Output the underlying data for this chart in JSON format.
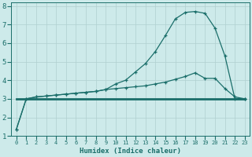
{
  "xlabel": "Humidex (Indice chaleur)",
  "background_color": "#cdeaea",
  "grid_color": "#b0d0d0",
  "line_color": "#1a6e6a",
  "xlim": [
    -0.5,
    23.5
  ],
  "ylim": [
    1,
    8.2
  ],
  "x_ticks": [
    0,
    1,
    2,
    3,
    4,
    5,
    6,
    7,
    8,
    9,
    10,
    11,
    12,
    13,
    14,
    15,
    16,
    17,
    18,
    19,
    20,
    21,
    22,
    23
  ],
  "yticks": [
    1,
    2,
    3,
    4,
    5,
    6,
    7,
    8
  ],
  "line_flat_x": [
    0,
    1,
    2,
    3,
    4,
    5,
    6,
    7,
    8,
    9,
    10,
    11,
    12,
    13,
    14,
    15,
    16,
    17,
    18,
    19,
    20,
    21,
    22,
    23
  ],
  "line_flat_y": [
    3.0,
    3.0,
    3.0,
    3.0,
    3.0,
    3.0,
    3.0,
    3.0,
    3.0,
    3.0,
    3.0,
    3.0,
    3.0,
    3.0,
    3.0,
    3.0,
    3.0,
    3.0,
    3.0,
    3.0,
    3.0,
    3.0,
    3.0,
    3.0
  ],
  "line_peak_x": [
    0,
    1,
    2,
    3,
    4,
    5,
    6,
    7,
    8,
    9,
    10,
    11,
    12,
    13,
    14,
    15,
    16,
    17,
    18,
    19,
    20,
    21,
    22,
    23
  ],
  "line_peak_y": [
    1.35,
    3.0,
    3.1,
    3.15,
    3.2,
    3.25,
    3.3,
    3.35,
    3.4,
    3.5,
    3.8,
    4.0,
    4.45,
    4.9,
    5.55,
    6.4,
    7.3,
    7.65,
    7.7,
    7.6,
    6.8,
    5.3,
    3.0,
    3.0
  ],
  "line_mid_x": [
    0,
    1,
    2,
    3,
    4,
    5,
    6,
    7,
    8,
    9,
    10,
    11,
    12,
    13,
    14,
    15,
    16,
    17,
    18,
    19,
    20,
    21,
    22,
    23
  ],
  "line_mid_y": [
    1.35,
    3.0,
    3.1,
    3.15,
    3.2,
    3.25,
    3.3,
    3.35,
    3.4,
    3.5,
    3.55,
    3.6,
    3.65,
    3.7,
    3.8,
    3.9,
    4.05,
    4.2,
    4.4,
    4.1,
    4.1,
    3.55,
    3.1,
    3.0
  ]
}
